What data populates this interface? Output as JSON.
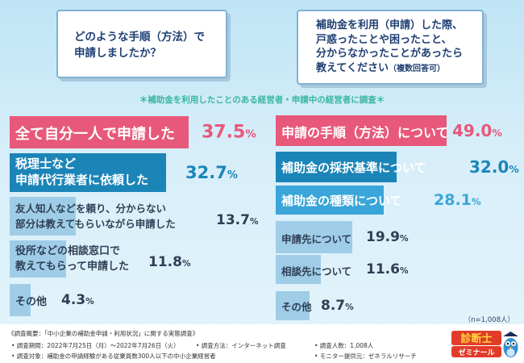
{
  "questions": {
    "left": [
      "どのような手順（方法）で",
      "申請しましたか？"
    ],
    "right": [
      "補助金を利用（申請）した際、",
      "戸惑ったことや困ったこと、",
      "分からなかったことがあったら",
      "教えてください",
      "（複数回答可）"
    ]
  },
  "survey_note": "＊補助金を利用したことのある経営者・申請中の経営者に調査＊",
  "chart_data": [
    {
      "type": "bar",
      "orientation": "horizontal",
      "categories": [
        "全て自分一人で申請した",
        "税理士など申請代行業者に依頼した",
        "友人知人などを頼り、分からない部分は教えてもらいながら申請した",
        "役所などの相談窓口で教えてもらって申請した",
        "その他"
      ],
      "values": [
        37.5,
        32.7,
        13.7,
        11.8,
        4.3
      ],
      "unit": "%",
      "xlim": [
        0,
        100
      ],
      "colors": [
        "#e8587a",
        "#1c85b8",
        "#9fcde8",
        "#9fcde8",
        "#9fcde8"
      ]
    },
    {
      "type": "bar",
      "orientation": "horizontal",
      "categories": [
        "申請の手順（方法）について",
        "補助金の採択基準について",
        "補助金の種類について",
        "申請先について",
        "相談先について",
        "その他"
      ],
      "values": [
        49.0,
        32.0,
        28.1,
        19.9,
        11.6,
        8.7
      ],
      "unit": "%",
      "xlim": [
        0,
        100
      ],
      "colors": [
        "#e8587a",
        "#1c85b8",
        "#3aa5d8",
        "#9fcde8",
        "#9fcde8",
        "#9fcde8"
      ]
    }
  ],
  "left_labels": {
    "l1": [
      "全て自分一人で申請した"
    ],
    "l2": [
      "税理士など",
      "申請代行業者に依頼した"
    ],
    "l3": [
      "友人知人などを頼り、分からない",
      "部分は教えてもらいながら申請した"
    ],
    "l4": [
      "役所などの相談窓口で",
      "教えてもらって申請した"
    ],
    "l5": [
      "その他"
    ]
  },
  "right_labels": {
    "r1": "申請の手順（方法）について",
    "r2": "補助金の採択基準について",
    "r3": "補助金の種類について",
    "r4": "申請先について",
    "r5": "相談先について",
    "r6": "その他"
  },
  "pct_left": [
    "37.5",
    "32.7",
    "13.7",
    "11.8",
    "4.3"
  ],
  "pct_right": [
    "49.0",
    "32.0",
    "28.1",
    "19.9",
    "11.6",
    "8.7"
  ],
  "pct_symbol": "%",
  "respondents": "（n=1,008人）",
  "footer": {
    "overview": "《調査概要：「中小企業の補助金申請・利用状況」に関する実態調査》",
    "period": "• 調査期間：2022年7月25日（月）〜2022年7月26日（火）",
    "target": "• 調査対象：補助金の申請経験がある従業員数300人以下の中小企業経営者",
    "method": "• 調査方法：インターネット調査",
    "count": "• 調査人数：1,008人",
    "monitor": "• モニター提供元：ゼネラルリサーチ"
  },
  "logo": {
    "line1": "診断士",
    "line2": "ゼミナール"
  }
}
